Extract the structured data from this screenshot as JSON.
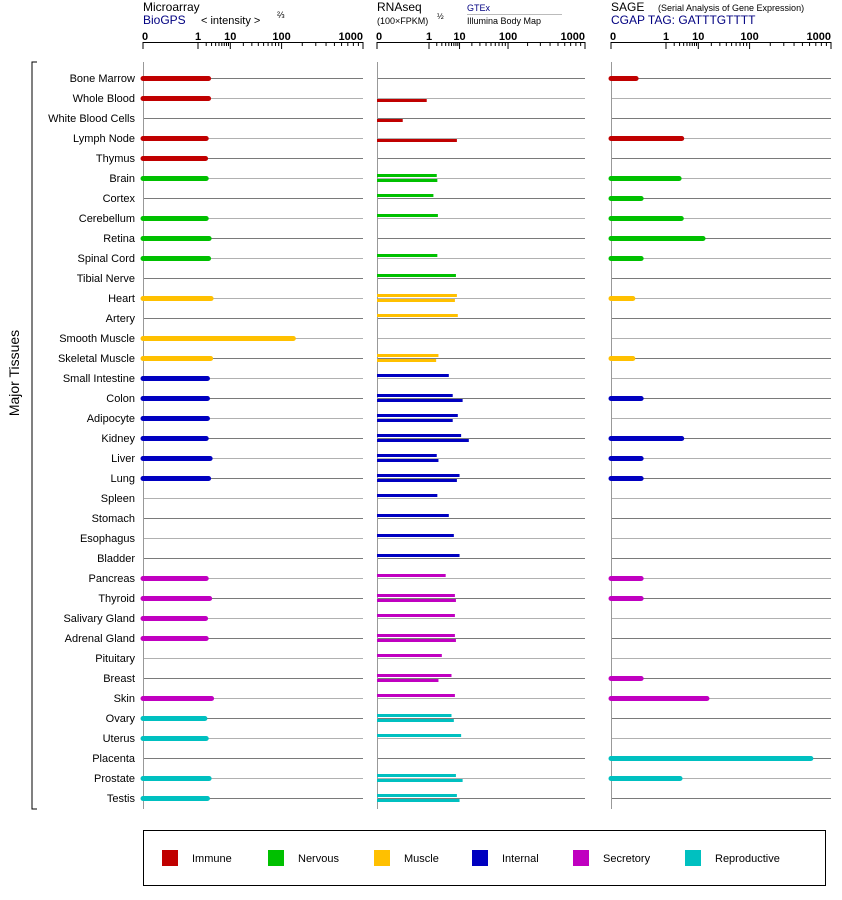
{
  "header": {
    "microarray": {
      "title": "Microarray",
      "source": "BioGPS",
      "unit": "< intensity >",
      "unit_exp": "⅔"
    },
    "rnaseq": {
      "title": "RNAseq",
      "unit": "(100×FPKM)",
      "unit_exp": "½",
      "source1": "GTEx",
      "source2": "Illumina Body Map"
    },
    "sage": {
      "title": "SAGE",
      "subtitle": "(Serial Analysis of Gene Expression)",
      "source": "CGAP TAG: GATTTGTTTT"
    }
  },
  "side_label": "Major Tissues",
  "legend": [
    {
      "label": "Immune",
      "color": "#c00000"
    },
    {
      "label": "Nervous",
      "color": "#00c000"
    },
    {
      "label": "Muscle",
      "color": "#ffc000"
    },
    {
      "label": "Internal",
      "color": "#0000c0"
    },
    {
      "label": "Secretory",
      "color": "#c000c0"
    },
    {
      "label": "Reproductive",
      "color": "#00c0c0"
    }
  ],
  "chart_data": {
    "type": "bar",
    "orientation": "horizontal",
    "axis_scale": "power",
    "tick_labels": [
      "0",
      "1",
      "10",
      "100",
      "1000"
    ],
    "xlim": [
      0,
      1000
    ],
    "categories": [
      "Bone Marrow",
      "Whole Blood",
      "White Blood Cells",
      "Lymph Node",
      "Thymus",
      "Brain",
      "Cortex",
      "Cerebellum",
      "Retina",
      "Spinal Cord",
      "Tibial Nerve",
      "Heart",
      "Artery",
      "Smooth Muscle",
      "Skeletal Muscle",
      "Small Intestine",
      "Colon",
      "Adipocyte",
      "Kidney",
      "Liver",
      "Lung",
      "Spleen",
      "Stomach",
      "Esophagus",
      "Bladder",
      "Pancreas",
      "Thyroid",
      "Salivary Gland",
      "Adrenal Gland",
      "Pituitary",
      "Breast",
      "Skin",
      "Ovary",
      "Uterus",
      "Placenta",
      "Prostate",
      "Testis"
    ],
    "systems": [
      "Immune",
      "Immune",
      "Immune",
      "Immune",
      "Immune",
      "Nervous",
      "Nervous",
      "Nervous",
      "Nervous",
      "Nervous",
      "Nervous",
      "Muscle",
      "Muscle",
      "Muscle",
      "Muscle",
      "Internal",
      "Internal",
      "Internal",
      "Internal",
      "Internal",
      "Internal",
      "Internal",
      "Internal",
      "Internal",
      "Internal",
      "Secretory",
      "Secretory",
      "Secretory",
      "Secretory",
      "Secretory",
      "Secretory",
      "Secretory",
      "Reproductive",
      "Reproductive",
      "Reproductive",
      "Reproductive",
      "Reproductive"
    ],
    "microarray": [
      2.4,
      2.4,
      null,
      2.0,
      1.9,
      2.0,
      null,
      2.0,
      2.5,
      2.4,
      null,
      2.9,
      null,
      150,
      2.8,
      2.2,
      2.2,
      2.2,
      2.0,
      2.7,
      2.4,
      null,
      null,
      null,
      null,
      2.0,
      2.6,
      1.9,
      2.0,
      null,
      null,
      3.0,
      1.8,
      2.0,
      null,
      2.5,
      2.2
    ],
    "sage": [
      0.02,
      null,
      null,
      3.5,
      null,
      2.9,
      0.05,
      3.4,
      13,
      0.05,
      null,
      0.01,
      null,
      null,
      0.01,
      null,
      0.05,
      null,
      3.5,
      0.05,
      0.05,
      null,
      null,
      null,
      null,
      0.05,
      0.05,
      null,
      null,
      null,
      0.05,
      16,
      null,
      null,
      620,
      3.1,
      null
    ],
    "rnaseq": {
      "series": [
        {
          "name": "GTEx",
          "values": [
            null,
            null,
            null,
            null,
            null,
            2.0,
            1.5,
            2.2,
            null,
            2.1,
            8.0,
            8.5,
            9.0,
            null,
            2.3,
            5.0,
            6.5,
            9.0,
            11.0,
            2.0,
            10.0,
            2.1,
            5.0,
            7.0,
            10.0,
            4.0,
            7.5,
            7.5,
            7.5,
            3.0,
            6.0,
            7.5,
            6.0,
            11.0,
            null,
            8.0,
            8.5
          ]
        },
        {
          "name": "Illumina Body Map",
          "values": [
            null,
            0.8,
            0.03,
            8.5,
            null,
            2.1,
            null,
            null,
            null,
            null,
            null,
            7.5,
            null,
            null,
            1.9,
            null,
            12.0,
            6.5,
            17.0,
            2.3,
            8.5,
            null,
            null,
            null,
            null,
            null,
            8.0,
            null,
            8.0,
            null,
            2.3,
            null,
            7.0,
            null,
            null,
            12.0,
            10.0
          ]
        }
      ]
    }
  }
}
